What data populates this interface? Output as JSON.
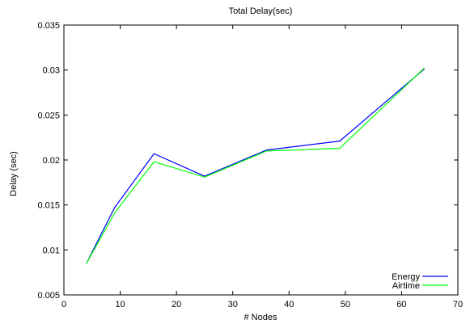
{
  "chart_data": {
    "type": "line",
    "title": "Total Delay(sec)",
    "xlabel": "# Nodes",
    "ylabel": "Delay (sec)",
    "xlim": [
      0,
      70
    ],
    "ylim": [
      0.005,
      0.035
    ],
    "xticks": [
      0,
      10,
      20,
      30,
      40,
      50,
      60,
      70
    ],
    "yticks": [
      0.005,
      0.01,
      0.015,
      0.02,
      0.025,
      0.03,
      0.035
    ],
    "xtick_labels": [
      "0",
      "10",
      "20",
      "30",
      "40",
      "50",
      "60",
      "70"
    ],
    "ytick_labels": [
      "0.005",
      "0.01",
      "0.015",
      "0.02",
      "0.025",
      "0.03",
      "0.035"
    ],
    "grid": false,
    "legend_position": "bottom-right",
    "series": [
      {
        "name": "Energy",
        "color": "#0000ff",
        "x": [
          4,
          9,
          16,
          25,
          36,
          49,
          64
        ],
        "y": [
          0.0085,
          0.0147,
          0.0207,
          0.0182,
          0.0211,
          0.0221,
          0.0301
        ]
      },
      {
        "name": "Airtime",
        "color": "#00ff00",
        "x": [
          4,
          9,
          16,
          25,
          36,
          49,
          64
        ],
        "y": [
          0.0085,
          0.0141,
          0.0198,
          0.0181,
          0.021,
          0.0213,
          0.0302
        ]
      }
    ]
  }
}
